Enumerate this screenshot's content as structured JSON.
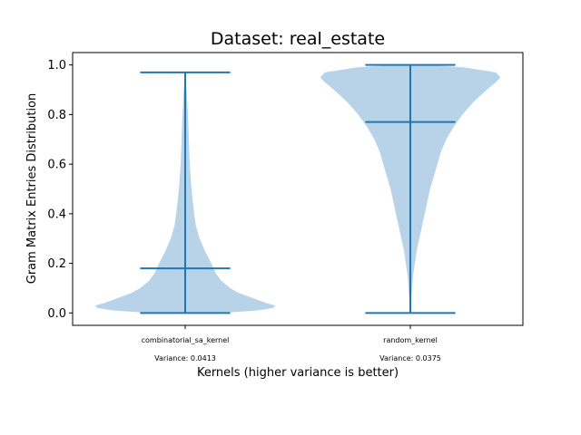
{
  "chart_data": {
    "type": "violin",
    "title": "Dataset: real_estate",
    "xlabel": "Kernels (higher variance is better)",
    "ylabel": "Gram Matrix Entries Distribution",
    "ylim": [
      -0.05,
      1.05
    ],
    "yticks": [
      "0.0",
      "0.2",
      "0.4",
      "0.6",
      "0.8",
      "1.0"
    ],
    "ytick_values": [
      0.0,
      0.2,
      0.4,
      0.6,
      0.8,
      1.0
    ],
    "grid": false,
    "colors": {
      "fill": "#b8d3e8",
      "line": "#1f77b4"
    },
    "violins": [
      {
        "name": "combinatorial_sa_kernel",
        "variance_label": "Variance: 0.0413",
        "min": 0.0,
        "median": 0.18,
        "max": 0.97,
        "density": [
          [
            0.0,
            0.4
          ],
          [
            0.01,
            0.8
          ],
          [
            0.02,
            0.98
          ],
          [
            0.03,
            1.0
          ],
          [
            0.04,
            0.9
          ],
          [
            0.06,
            0.75
          ],
          [
            0.08,
            0.6
          ],
          [
            0.1,
            0.5
          ],
          [
            0.13,
            0.4
          ],
          [
            0.16,
            0.34
          ],
          [
            0.2,
            0.29
          ],
          [
            0.25,
            0.22
          ],
          [
            0.3,
            0.16
          ],
          [
            0.35,
            0.12
          ],
          [
            0.4,
            0.1
          ],
          [
            0.5,
            0.07
          ],
          [
            0.6,
            0.05
          ],
          [
            0.7,
            0.04
          ],
          [
            0.8,
            0.03
          ],
          [
            0.9,
            0.015
          ],
          [
            0.97,
            0.0
          ]
        ]
      },
      {
        "name": "random_kernel",
        "variance_label": "Variance: 0.0375",
        "min": 0.0,
        "median": 0.77,
        "max": 1.0,
        "density": [
          [
            0.0,
            0.0
          ],
          [
            0.05,
            0.01
          ],
          [
            0.1,
            0.02
          ],
          [
            0.15,
            0.03
          ],
          [
            0.2,
            0.05
          ],
          [
            0.25,
            0.07
          ],
          [
            0.3,
            0.1
          ],
          [
            0.35,
            0.13
          ],
          [
            0.4,
            0.16
          ],
          [
            0.5,
            0.22
          ],
          [
            0.55,
            0.26
          ],
          [
            0.6,
            0.3
          ],
          [
            0.65,
            0.34
          ],
          [
            0.7,
            0.4
          ],
          [
            0.75,
            0.48
          ],
          [
            0.8,
            0.58
          ],
          [
            0.85,
            0.7
          ],
          [
            0.9,
            0.85
          ],
          [
            0.93,
            0.95
          ],
          [
            0.95,
            1.0
          ],
          [
            0.97,
            0.95
          ],
          [
            0.99,
            0.6
          ],
          [
            1.0,
            0.2
          ]
        ]
      }
    ]
  }
}
